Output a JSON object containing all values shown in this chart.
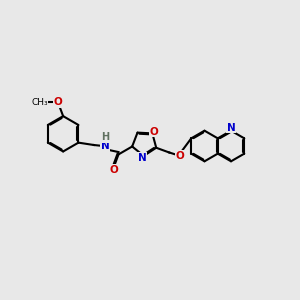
{
  "background_color": "#e8e8e8",
  "bond_color": "#000000",
  "N_color": "#0000cc",
  "O_color": "#cc0000",
  "H_color": "#607060",
  "line_width": 1.5,
  "dbo": 0.032,
  "figsize": [
    3.0,
    3.0
  ],
  "dpi": 100,
  "xlim": [
    0,
    10
  ],
  "ylim": [
    0,
    10
  ]
}
